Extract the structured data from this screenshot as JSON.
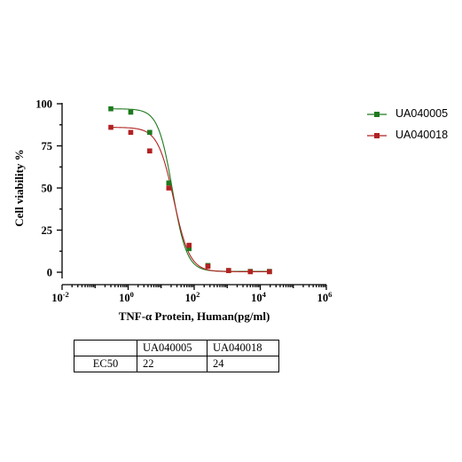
{
  "chart_data": {
    "type": "line",
    "xlabel": "TNF-α Protein, Human(pg/ml)",
    "ylabel": "Cell viability %",
    "x_scale": "log",
    "xlim": [
      0.01,
      1000000
    ],
    "ylim": [
      0,
      100
    ],
    "x_ticks": [
      {
        "base": "10",
        "exp": "-2"
      },
      {
        "base": "10",
        "exp": "0"
      },
      {
        "base": "10",
        "exp": "2"
      },
      {
        "base": "10",
        "exp": "4"
      },
      {
        "base": "10",
        "exp": "6"
      }
    ],
    "y_ticks": [
      "0",
      "25",
      "50",
      "75",
      "100"
    ],
    "legend_position": "top-right",
    "series": [
      {
        "name": "UA040005",
        "color": "#1e7a1e",
        "marker": "square",
        "x": [
          0.3,
          1.2,
          4.5,
          17,
          70,
          260,
          1100,
          5000,
          19000
        ],
        "y": [
          97,
          95,
          83,
          53,
          14,
          4,
          1,
          0.5,
          0.5
        ],
        "fit": {
          "top": 97,
          "bottom": 0.5,
          "ec50": 22,
          "hill": 2.0
        }
      },
      {
        "name": "UA040018",
        "color": "#b22222",
        "marker": "square",
        "x": [
          0.3,
          1.2,
          4.5,
          17,
          70,
          260,
          1100,
          5000,
          19000
        ],
        "y": [
          86,
          83,
          72,
          50,
          16,
          3.5,
          1,
          0.3,
          0.3
        ],
        "fit": {
          "top": 86,
          "bottom": 0.3,
          "ec50": 24,
          "hill": 1.8
        }
      }
    ]
  },
  "table": {
    "headers": [
      "",
      "UA040005",
      "UA040018"
    ],
    "rows": [
      [
        "EC50",
        "22",
        "24"
      ]
    ]
  }
}
